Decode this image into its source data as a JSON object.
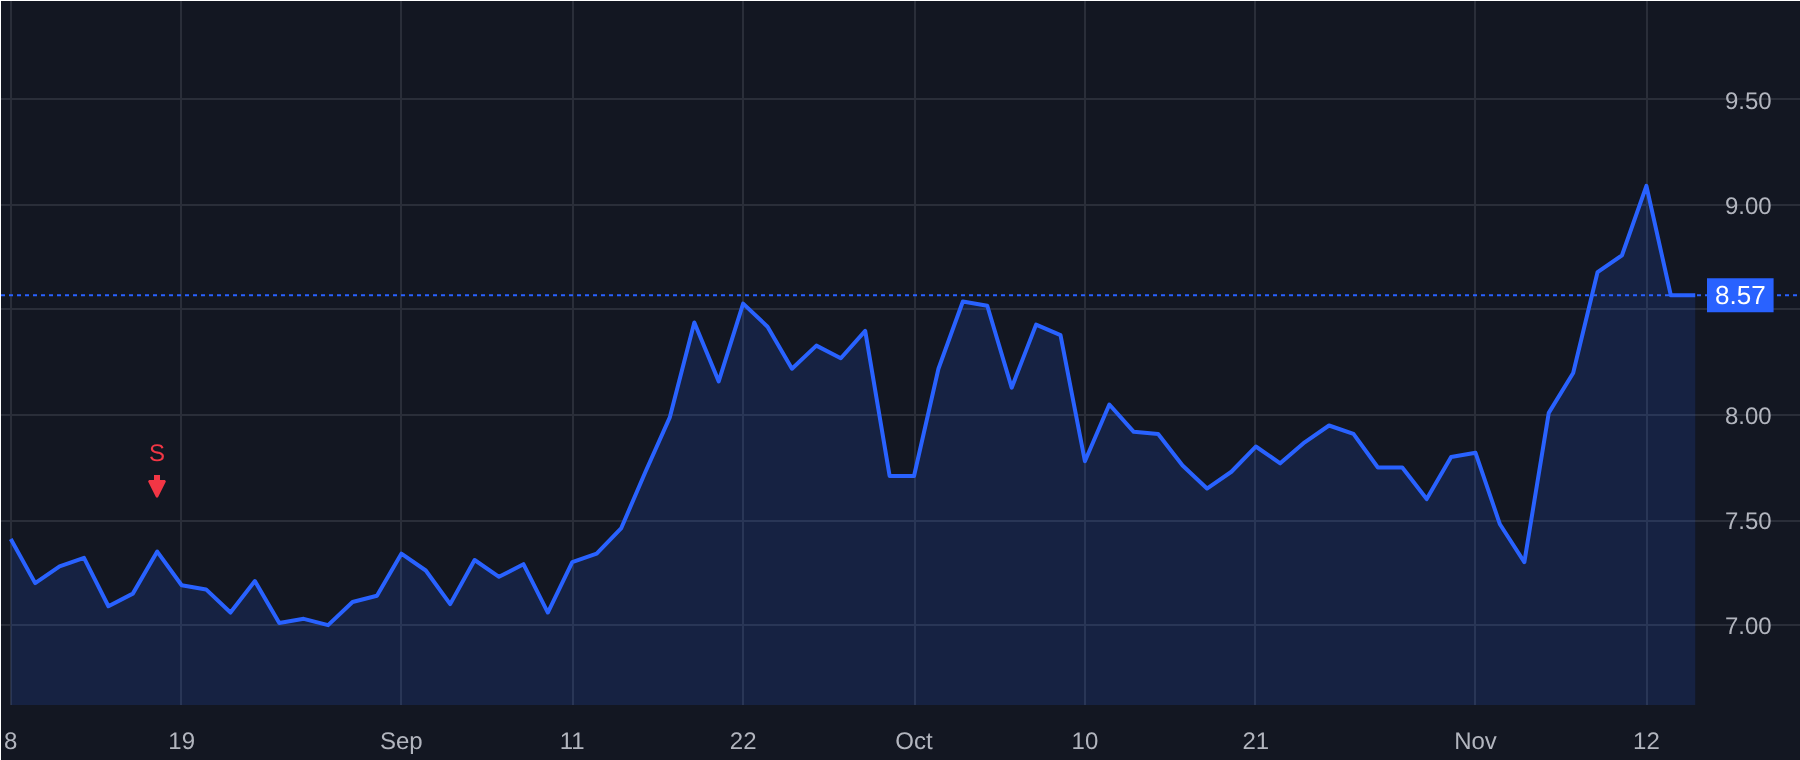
{
  "chart_data": {
    "type": "area",
    "categories": [
      "8",
      null,
      null,
      null,
      null,
      null,
      null,
      "19",
      null,
      null,
      null,
      null,
      null,
      null,
      null,
      null,
      "Sep",
      null,
      null,
      null,
      null,
      null,
      null,
      "11",
      null,
      null,
      null,
      null,
      null,
      null,
      "22",
      null,
      null,
      null,
      null,
      null,
      null,
      "Oct",
      null,
      null,
      null,
      null,
      null,
      null,
      "10",
      null,
      null,
      null,
      null,
      null,
      null,
      "21",
      null,
      null,
      null,
      null,
      null,
      null,
      null,
      null,
      "Nov",
      null,
      null,
      null,
      null,
      null,
      null,
      "12",
      null,
      null
    ],
    "series": [
      {
        "color": "#2962ff",
        "values": [
          7.41,
          7.2,
          7.28,
          7.32,
          7.09,
          7.15,
          7.35,
          7.19,
          7.17,
          7.06,
          7.21,
          7.01,
          7.03,
          7.0,
          7.11,
          7.14,
          7.34,
          7.26,
          7.1,
          7.31,
          7.23,
          7.29,
          7.06,
          7.3,
          7.34,
          7.46,
          7.73,
          7.99,
          8.44,
          8.16,
          8.53,
          8.42,
          8.22,
          8.33,
          8.27,
          8.4,
          7.71,
          7.71,
          8.22,
          8.54,
          8.52,
          8.13,
          8.43,
          8.38,
          7.78,
          8.05,
          7.92,
          7.91,
          7.76,
          7.65,
          7.73,
          7.85,
          7.77,
          7.87,
          7.95,
          7.91,
          7.75,
          7.75,
          7.6,
          7.8,
          7.82,
          7.48,
          7.3,
          8.01,
          8.2,
          8.68,
          8.76,
          9.09,
          8.57,
          8.57
        ]
      }
    ],
    "ylim": [
      6.62,
      9.97
    ],
    "yticks": [
      {
        "value": 7,
        "label": "7.00"
      },
      {
        "value": 7.5,
        "label": "7.50"
      },
      {
        "value": 8,
        "label": "8.00"
      },
      {
        "value": 8.5,
        "label": null
      },
      {
        "value": 9,
        "label": "9.00"
      },
      {
        "value": 9.5,
        "label": "9.50"
      }
    ],
    "grid": true,
    "ref_lines": [
      {
        "axis": "y",
        "value": 8.57,
        "label": "8.57",
        "color": "#2962ff",
        "line_style": "dotted"
      }
    ],
    "annotations": [
      "S"
    ]
  }
}
